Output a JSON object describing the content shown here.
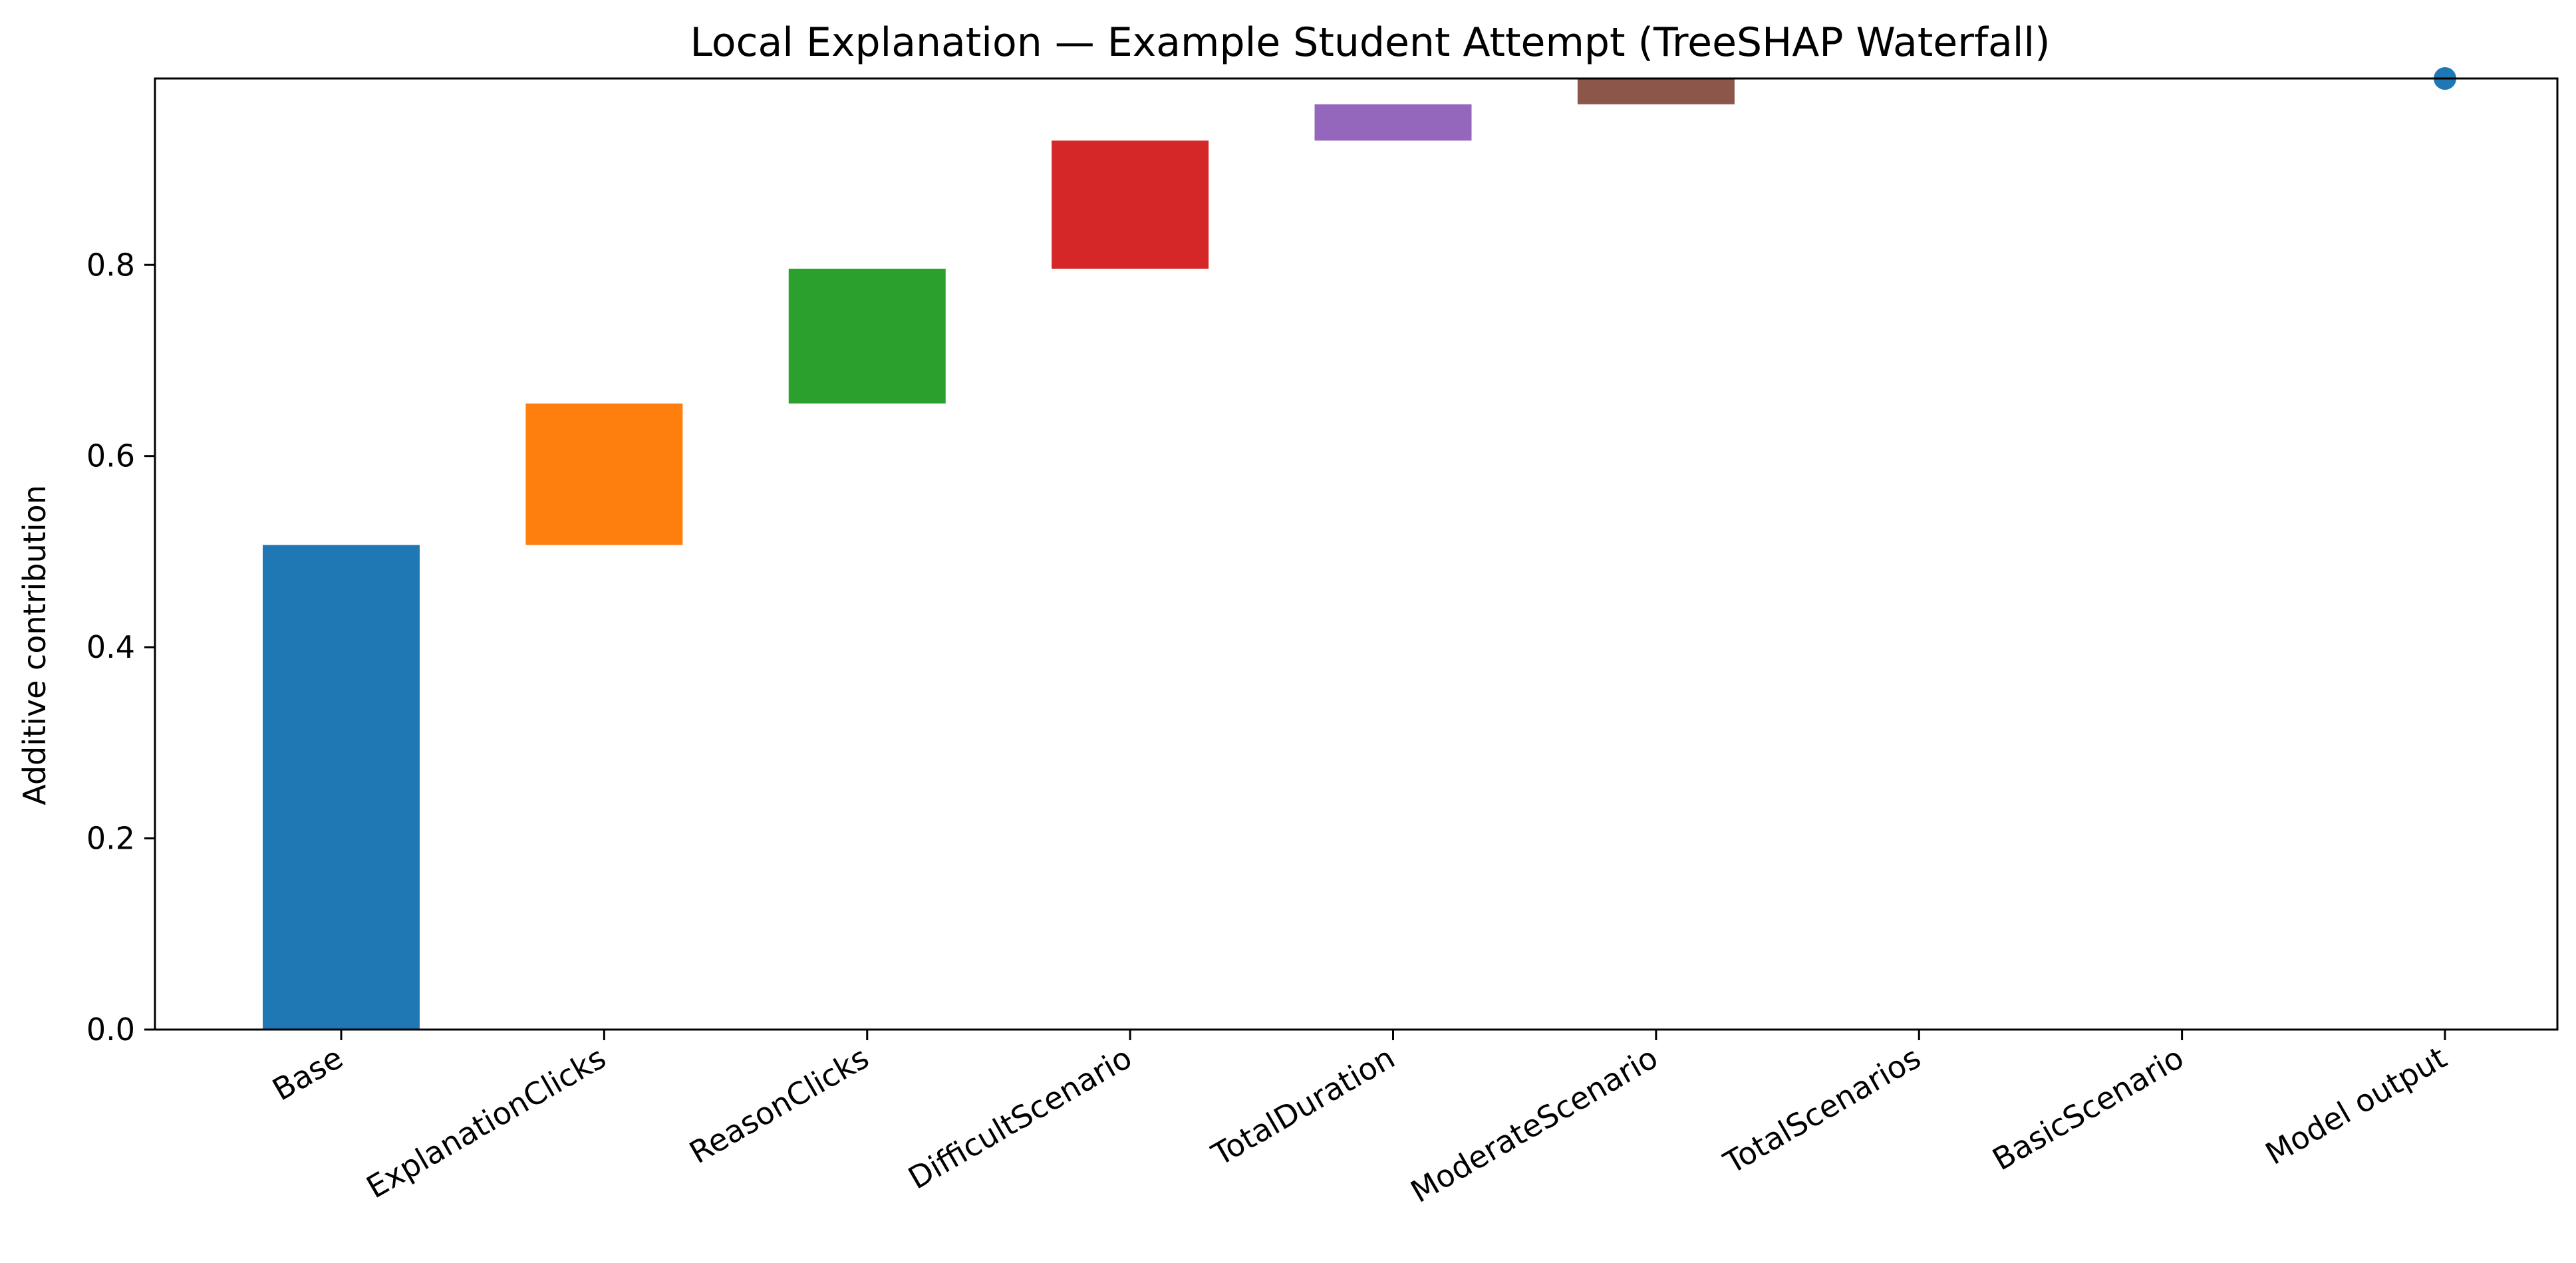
{
  "chart_data": {
    "type": "bar",
    "subtype": "waterfall",
    "title": "Local Explanation — Example Student Attempt (TreeSHAP Waterfall)",
    "xlabel": "",
    "ylabel": "Additive contribution",
    "ylim": [
      0.0,
      0.995
    ],
    "yticks": [
      0.0,
      0.2,
      0.4,
      0.6,
      0.8
    ],
    "ytick_labels": [
      "0.0",
      "0.2",
      "0.4",
      "0.6",
      "0.8"
    ],
    "grid": false,
    "legend": "none",
    "categories": [
      "Base",
      "ExplanationClicks",
      "ReasonClicks",
      "DifficultScenario",
      "TotalDuration",
      "ModerateScenario",
      "TotalScenarios",
      "BasicScenario",
      "Model output"
    ],
    "bars": [
      {
        "category": "Base",
        "start": 0.0,
        "value": 0.507,
        "color": "#1f77b4"
      },
      {
        "category": "ExplanationClicks",
        "start": 0.507,
        "value": 0.148,
        "color": "#ff7f0e"
      },
      {
        "category": "ReasonClicks",
        "start": 0.655,
        "value": 0.141,
        "color": "#2ca02c"
      },
      {
        "category": "DifficultScenario",
        "start": 0.796,
        "value": 0.134,
        "color": "#d62728"
      },
      {
        "category": "TotalDuration",
        "start": 0.93,
        "value": 0.038,
        "color": "#9467bd"
      },
      {
        "category": "ModerateScenario",
        "start": 0.968,
        "value": 0.027,
        "color": "#8c564b"
      },
      {
        "category": "TotalScenarios",
        "start": 0.995,
        "value": 0.0,
        "color": "#e377c2"
      },
      {
        "category": "BasicScenario",
        "start": 0.995,
        "value": 0.0,
        "color": "#7f7f7f"
      }
    ],
    "model_output": {
      "category": "Model output",
      "value": 0.995,
      "color": "#1f77b4"
    }
  }
}
